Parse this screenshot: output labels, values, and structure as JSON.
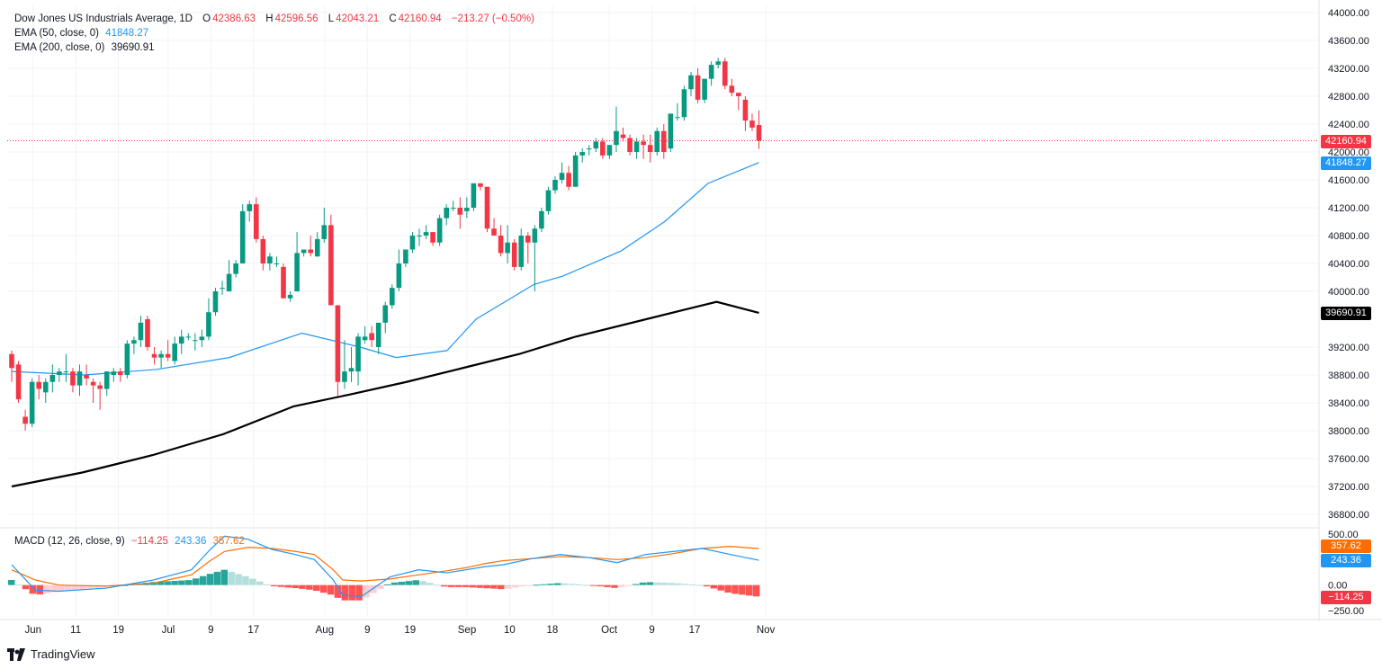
{
  "header": {
    "symbol": "Dow Jones US Industrials Average, 1D",
    "open_label": "O",
    "open": "42386.63",
    "high_label": "H",
    "high": "42596.56",
    "low_label": "L",
    "low": "42043.21",
    "close_label": "C",
    "close": "42160.94",
    "change": "−213.27 (−0.50%)"
  },
  "indicators": {
    "ema50_label": "EMA (50, close, 0)",
    "ema50_value": "41848.27",
    "ema50_color": "#2196f3",
    "ema200_label": "EMA (200, close, 0)",
    "ema200_value": "39690.91",
    "ema200_color": "#000000",
    "macd_label": "MACD (12, 26, close, 9)",
    "macd_hist": "−114.25",
    "macd_line": "243.36",
    "macd_signal": "357.62",
    "macd_line_color": "#2196f3",
    "macd_signal_color": "#ff6d00"
  },
  "price_tags": {
    "last": "42160.94",
    "ema50": "41848.27",
    "ema200": "39690.91",
    "macd_signal": "357.62",
    "macd_line": "243.36",
    "macd_hist": "−114.25"
  },
  "colors": {
    "up": "#089981",
    "down": "#f23645",
    "ema50": "#2196f3",
    "ema200": "#000000",
    "hist_up_strong": "#26a69a",
    "hist_up_weak": "#b2dfdb",
    "hist_down_strong": "#ff5252",
    "hist_down_weak": "#ffcdd2"
  },
  "branding": "TradingView",
  "chart_data": {
    "type": "candlestick",
    "title": "Dow Jones US Industrials Average, 1D",
    "y_axis": {
      "ylim": [
        36600,
        44000
      ],
      "ticks": [
        36800,
        37200,
        37600,
        38000,
        38400,
        38800,
        39200,
        40000,
        40400,
        40800,
        41200,
        41600,
        42000,
        42400,
        42800,
        43200,
        43600,
        44000
      ]
    },
    "x_axis": {
      "ticks": [
        "Jun",
        "11",
        "19",
        "Jul",
        "9",
        "17",
        "Aug",
        "9",
        "19",
        "Sep",
        "10",
        "18",
        "Oct",
        "9",
        "17",
        "Nov"
      ],
      "tick_index": [
        3,
        9,
        15,
        22,
        28,
        34,
        44,
        50,
        56,
        64,
        70,
        76,
        84,
        90,
        96,
        106
      ]
    },
    "candles": [
      [
        39100,
        39150,
        38700,
        38900
      ],
      [
        38950,
        39000,
        38400,
        38450
      ],
      [
        38200,
        38300,
        38000,
        38100
      ],
      [
        38100,
        38750,
        38050,
        38700
      ],
      [
        38700,
        38800,
        38450,
        38600
      ],
      [
        38550,
        38750,
        38400,
        38700
      ],
      [
        38700,
        38950,
        38550,
        38800
      ],
      [
        38800,
        38900,
        38700,
        38850
      ],
      [
        38850,
        39100,
        38700,
        38850
      ],
      [
        38850,
        38900,
        38550,
        38650
      ],
      [
        38650,
        38950,
        38500,
        38850
      ],
      [
        38800,
        38950,
        38650,
        38750
      ],
      [
        38700,
        38750,
        38400,
        38650
      ],
      [
        38650,
        38700,
        38300,
        38600
      ],
      [
        38600,
        38850,
        38500,
        38850
      ],
      [
        38800,
        38900,
        38700,
        38850
      ],
      [
        38850,
        38900,
        38700,
        38800
      ],
      [
        38800,
        39300,
        38750,
        39250
      ],
      [
        39250,
        39350,
        39100,
        39300
      ],
      [
        39300,
        39650,
        39200,
        39550
      ],
      [
        39600,
        39650,
        39150,
        39200
      ],
      [
        39100,
        39200,
        38950,
        39050
      ],
      [
        39050,
        39150,
        38900,
        39100
      ],
      [
        39100,
        39300,
        39000,
        39050
      ],
      [
        39000,
        39350,
        38950,
        39250
      ],
      [
        39250,
        39450,
        39100,
        39350
      ],
      [
        39350,
        39400,
        39300,
        39350
      ],
      [
        39300,
        39400,
        39150,
        39300
      ],
      [
        39300,
        39450,
        39200,
        39350
      ],
      [
        39350,
        39900,
        39300,
        39700
      ],
      [
        39700,
        40050,
        39650,
        40000
      ],
      [
        40050,
        40150,
        39950,
        40050
      ],
      [
        40000,
        40450,
        40000,
        40250
      ],
      [
        40250,
        40450,
        40200,
        40400
      ],
      [
        40400,
        41250,
        40400,
        41150
      ],
      [
        41150,
        41300,
        41000,
        41250
      ],
      [
        41250,
        41350,
        40700,
        40750
      ],
      [
        40750,
        40800,
        40300,
        40400
      ],
      [
        40400,
        40550,
        40300,
        40500
      ],
      [
        40400,
        40500,
        40350,
        40400
      ],
      [
        40350,
        40400,
        39900,
        39900
      ],
      [
        39900,
        40000,
        39850,
        39950
      ],
      [
        40000,
        40850,
        40000,
        40550
      ],
      [
        40550,
        40600,
        40500,
        40600
      ],
      [
        40600,
        40800,
        40500,
        40550
      ],
      [
        40500,
        40850,
        40500,
        40750
      ],
      [
        40750,
        41200,
        40700,
        40950
      ],
      [
        40950,
        41100,
        39800,
        39800
      ],
      [
        39800,
        39800,
        38500,
        38700
      ],
      [
        38700,
        39300,
        38600,
        38850
      ],
      [
        38850,
        39200,
        38700,
        38900
      ],
      [
        38850,
        39400,
        38650,
        39350
      ],
      [
        39300,
        39500,
        39250,
        39350
      ],
      [
        39400,
        39500,
        39200,
        39300
      ],
      [
        39200,
        39500,
        39100,
        39550
      ],
      [
        39550,
        39850,
        39400,
        39800
      ],
      [
        39800,
        40100,
        39750,
        40050
      ],
      [
        40050,
        40600,
        40000,
        40400
      ],
      [
        40400,
        40600,
        40350,
        40600
      ],
      [
        40600,
        40850,
        40550,
        40800
      ],
      [
        40800,
        40900,
        40650,
        40800
      ],
      [
        40800,
        40950,
        40750,
        40850
      ],
      [
        40850,
        40850,
        40650,
        40700
      ],
      [
        40700,
        41100,
        40650,
        41050
      ],
      [
        41050,
        41250,
        40950,
        41200
      ],
      [
        41200,
        41300,
        41150,
        41200
      ],
      [
        41200,
        41350,
        40900,
        41100
      ],
      [
        41150,
        41350,
        41050,
        41200
      ],
      [
        41200,
        41550,
        41150,
        41550
      ],
      [
        41550,
        41550,
        41450,
        41500
      ],
      [
        41500,
        41500,
        40850,
        40900
      ],
      [
        40900,
        41050,
        40800,
        40800
      ],
      [
        40800,
        40950,
        40500,
        40550
      ],
      [
        40550,
        40950,
        40400,
        40700
      ],
      [
        40700,
        40750,
        40300,
        40350
      ],
      [
        40350,
        40900,
        40300,
        40800
      ],
      [
        40800,
        40850,
        40400,
        40700
      ],
      [
        40700,
        40950,
        40000,
        40900
      ],
      [
        40900,
        41200,
        40850,
        41150
      ],
      [
        41150,
        41500,
        41100,
        41450
      ],
      [
        41450,
        41650,
        41400,
        41600
      ],
      [
        41600,
        41850,
        41550,
        41700
      ],
      [
        41700,
        41800,
        41450,
        41500
      ],
      [
        41500,
        42000,
        41500,
        41950
      ],
      [
        41950,
        42050,
        41850,
        42000
      ],
      [
        42050,
        42100,
        41950,
        42050
      ],
      [
        42050,
        42200,
        42000,
        42150
      ],
      [
        42150,
        42200,
        41900,
        41950
      ],
      [
        41950,
        42100,
        41900,
        42100
      ],
      [
        42100,
        42650,
        42000,
        42300
      ],
      [
        42250,
        42350,
        42150,
        42200
      ],
      [
        42200,
        42250,
        41950,
        42000
      ],
      [
        42000,
        42200,
        41900,
        42150
      ],
      [
        42150,
        42250,
        41900,
        42100
      ],
      [
        42100,
        42250,
        41850,
        42000
      ],
      [
        42000,
        42350,
        41950,
        42300
      ],
      [
        42300,
        42400,
        41900,
        42000
      ],
      [
        42050,
        42550,
        42000,
        42550
      ],
      [
        42500,
        42700,
        42450,
        42500
      ],
      [
        42500,
        42950,
        42450,
        42900
      ],
      [
        42900,
        43150,
        42800,
        43100
      ],
      [
        43100,
        43200,
        42700,
        42750
      ],
      [
        42750,
        43050,
        42700,
        43050
      ],
      [
        43050,
        43300,
        42950,
        43250
      ],
      [
        43250,
        43350,
        43200,
        43300
      ],
      [
        43300,
        43350,
        42900,
        42950
      ],
      [
        42950,
        43050,
        42800,
        42850
      ],
      [
        42850,
        42850,
        42600,
        42800
      ],
      [
        42750,
        42800,
        42300,
        42450
      ],
      [
        42450,
        42550,
        42300,
        42350
      ],
      [
        42386.63,
        42596.56,
        42043.21,
        42160.94
      ]
    ],
    "ema50": [
      [
        0,
        38850
      ],
      [
        10,
        38800
      ],
      [
        20,
        38880
      ],
      [
        30,
        39050
      ],
      [
        40,
        39400
      ],
      [
        48,
        39200
      ],
      [
        53,
        39050
      ],
      [
        60,
        39150
      ],
      [
        64,
        39600
      ],
      [
        72,
        40100
      ],
      [
        76,
        40220
      ],
      [
        84,
        40580
      ],
      [
        90,
        41000
      ],
      [
        96,
        41550
      ],
      [
        103,
        41848.27
      ]
    ],
    "ema200": [
      [
        0,
        37200
      ],
      [
        10,
        37400
      ],
      [
        20,
        37650
      ],
      [
        30,
        37950
      ],
      [
        40,
        38350
      ],
      [
        48,
        38520
      ],
      [
        56,
        38700
      ],
      [
        64,
        38900
      ],
      [
        72,
        39100
      ],
      [
        80,
        39350
      ],
      [
        90,
        39600
      ],
      [
        100,
        39850
      ],
      [
        106,
        39690.91
      ]
    ],
    "macd": {
      "ylim": [
        -300,
        550
      ],
      "ticks": [
        -250,
        0,
        250,
        500
      ],
      "macd_line": [
        [
          0,
          200
        ],
        [
          5,
          -50
        ],
        [
          10,
          -60
        ],
        [
          20,
          -30
        ],
        [
          30,
          50
        ],
        [
          34,
          100
        ],
        [
          38,
          150
        ],
        [
          42,
          350
        ],
        [
          45,
          480
        ],
        [
          50,
          450
        ],
        [
          55,
          350
        ],
        [
          60,
          300
        ],
        [
          64,
          250
        ],
        [
          68,
          50
        ],
        [
          70,
          -100
        ],
        [
          74,
          -110
        ],
        [
          80,
          80
        ],
        [
          86,
          150
        ],
        [
          92,
          120
        ],
        [
          96,
          150
        ],
        [
          100,
          180
        ],
        [
          104,
          200
        ],
        [
          110,
          260
        ],
        [
          116,
          300
        ],
        [
          122,
          270
        ],
        [
          128,
          220
        ],
        [
          134,
          300
        ],
        [
          140,
          330
        ],
        [
          146,
          360
        ],
        [
          152,
          300
        ],
        [
          158,
          243.36
        ]
      ],
      "signal_line": [
        [
          0,
          150
        ],
        [
          5,
          50
        ],
        [
          10,
          0
        ],
        [
          20,
          -10
        ],
        [
          30,
          20
        ],
        [
          34,
          60
        ],
        [
          38,
          100
        ],
        [
          42,
          240
        ],
        [
          45,
          330
        ],
        [
          50,
          370
        ],
        [
          55,
          360
        ],
        [
          60,
          330
        ],
        [
          64,
          300
        ],
        [
          68,
          150
        ],
        [
          70,
          50
        ],
        [
          74,
          40
        ],
        [
          80,
          60
        ],
        [
          86,
          100
        ],
        [
          92,
          140
        ],
        [
          96,
          170
        ],
        [
          100,
          210
        ],
        [
          104,
          240
        ],
        [
          110,
          260
        ],
        [
          116,
          280
        ],
        [
          122,
          270
        ],
        [
          128,
          250
        ],
        [
          134,
          270
        ],
        [
          140,
          310
        ],
        [
          146,
          360
        ],
        [
          152,
          380
        ],
        [
          158,
          357.62
        ]
      ],
      "histogram_note": "bars alternate color by sign and momentum",
      "last_hist": -114.25
    }
  }
}
